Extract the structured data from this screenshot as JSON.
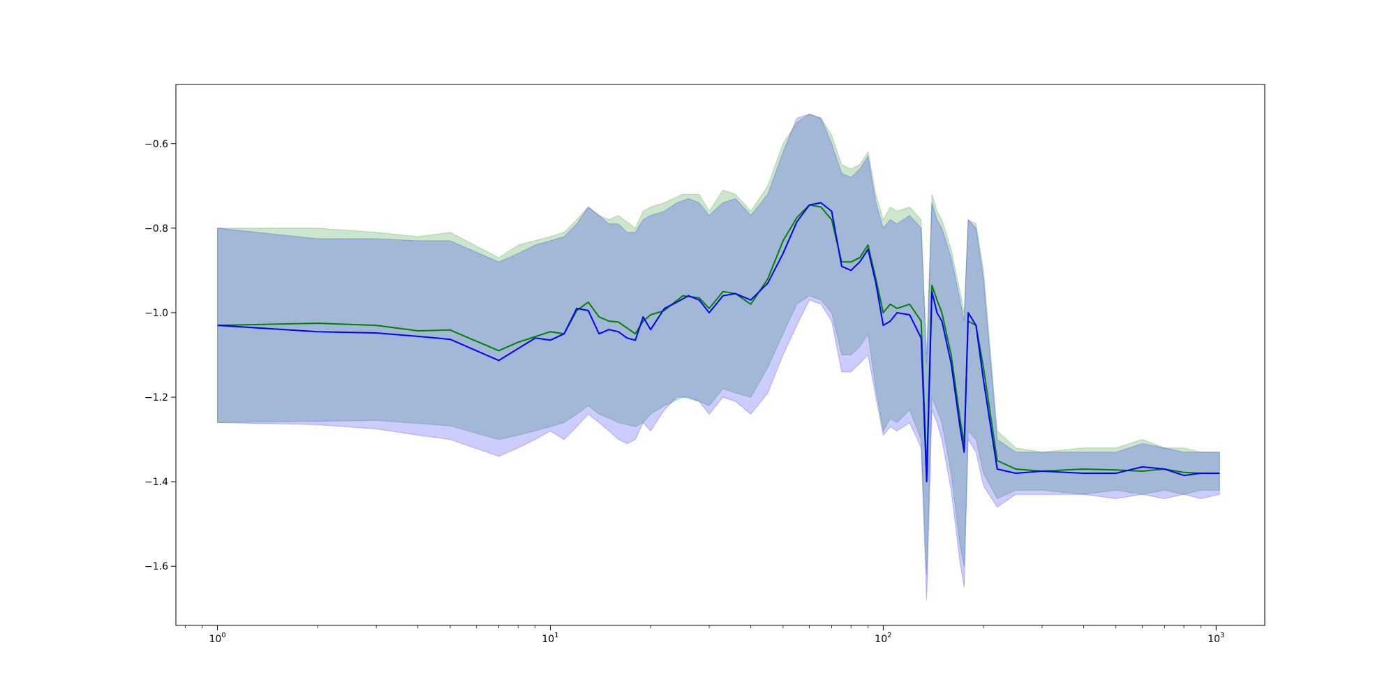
{
  "chart_data": {
    "type": "line",
    "title": "",
    "xlabel": "",
    "ylabel": "",
    "xscale": "log",
    "xlim": [
      0.75,
      1400
    ],
    "ylim": [
      -1.74,
      -0.46
    ],
    "grid": false,
    "legend": "none",
    "x_ticks": [
      {
        "base": "10",
        "exp": "0",
        "value": 1
      },
      {
        "base": "10",
        "exp": "1",
        "value": 10
      },
      {
        "base": "10",
        "exp": "2",
        "value": 100
      },
      {
        "base": "10",
        "exp": "3",
        "value": 1000
      }
    ],
    "y_ticks": [
      {
        "label": "−0.6",
        "value": -0.6
      },
      {
        "label": "−0.8",
        "value": -0.8
      },
      {
        "label": "−1.0",
        "value": -1.0
      },
      {
        "label": "−1.2",
        "value": -1.2
      },
      {
        "label": "−1.4",
        "value": -1.4
      },
      {
        "label": "−1.6",
        "value": -1.6
      }
    ],
    "series": [
      {
        "color": "#008000",
        "band_color": "#008000",
        "band_opacity": 0.2,
        "x": [
          1,
          2,
          3,
          4,
          5,
          7,
          8,
          10,
          11,
          12,
          13,
          14,
          15,
          16,
          18,
          19,
          20,
          22,
          25,
          28,
          30,
          33,
          36,
          40,
          45,
          50,
          55,
          60,
          65,
          70,
          75,
          80,
          85,
          90,
          95,
          100,
          105,
          110,
          120,
          130,
          135,
          140,
          145,
          150,
          160,
          170,
          175,
          180,
          190,
          200,
          220,
          250,
          300,
          400,
          500,
          600,
          700,
          800,
          900,
          1024
        ],
        "y": [
          -1.03,
          -1.025,
          -1.03,
          -1.043,
          -1.041,
          -1.09,
          -1.07,
          -1.045,
          -1.05,
          -0.995,
          -0.975,
          -1.01,
          -1.02,
          -1.022,
          -1.05,
          -1.02,
          -1.005,
          -0.995,
          -0.96,
          -0.965,
          -0.99,
          -0.95,
          -0.955,
          -0.98,
          -0.92,
          -0.83,
          -0.775,
          -0.745,
          -0.75,
          -0.78,
          -0.88,
          -0.88,
          -0.87,
          -0.84,
          -0.92,
          -1.0,
          -0.98,
          -0.99,
          -0.98,
          -1.02,
          -1.38,
          -0.935,
          -0.97,
          -1.0,
          -1.1,
          -1.25,
          -1.31,
          -1.02,
          -1.03,
          -1.13,
          -1.35,
          -1.37,
          -1.375,
          -1.37,
          -1.372,
          -1.375,
          -1.37,
          -1.378,
          -1.38,
          -1.38
        ],
        "lower": [
          -1.26,
          -1.257,
          -1.255,
          -1.262,
          -1.268,
          -1.3,
          -1.29,
          -1.27,
          -1.26,
          -1.24,
          -1.22,
          -1.24,
          -1.25,
          -1.26,
          -1.27,
          -1.26,
          -1.24,
          -1.22,
          -1.2,
          -1.21,
          -1.22,
          -1.18,
          -1.19,
          -1.2,
          -1.13,
          -1.05,
          -0.98,
          -0.96,
          -0.97,
          -1.0,
          -1.1,
          -1.1,
          -1.08,
          -1.05,
          -1.18,
          -1.28,
          -1.25,
          -1.26,
          -1.23,
          -1.3,
          -1.62,
          -1.2,
          -1.23,
          -1.26,
          -1.38,
          -1.55,
          -1.6,
          -1.28,
          -1.3,
          -1.38,
          -1.44,
          -1.42,
          -1.42,
          -1.43,
          -1.42,
          -1.43,
          -1.42,
          -1.43,
          -1.42,
          -1.42
        ],
        "upper": [
          -0.8,
          -0.8,
          -0.81,
          -0.82,
          -0.81,
          -0.87,
          -0.84,
          -0.82,
          -0.81,
          -0.78,
          -0.75,
          -0.77,
          -0.78,
          -0.77,
          -0.8,
          -0.76,
          -0.75,
          -0.74,
          -0.72,
          -0.72,
          -0.76,
          -0.71,
          -0.72,
          -0.76,
          -0.7,
          -0.6,
          -0.55,
          -0.53,
          -0.54,
          -0.58,
          -0.65,
          -0.66,
          -0.65,
          -0.62,
          -0.72,
          -0.78,
          -0.75,
          -0.76,
          -0.75,
          -0.78,
          -1.1,
          -0.72,
          -0.76,
          -0.78,
          -0.85,
          -0.95,
          -1.0,
          -0.78,
          -0.79,
          -0.9,
          -1.28,
          -1.32,
          -1.33,
          -1.32,
          -1.32,
          -1.3,
          -1.32,
          -1.32,
          -1.33,
          -1.33
        ]
      },
      {
        "color": "#0000ff",
        "band_color": "#0000ff",
        "band_opacity": 0.2,
        "x": [
          1,
          2,
          3,
          4,
          5,
          7,
          8,
          9,
          10,
          11,
          12,
          13,
          14,
          15,
          16,
          17,
          18,
          19,
          20,
          22,
          24,
          26,
          28,
          30,
          33,
          36,
          40,
          45,
          50,
          55,
          60,
          65,
          70,
          75,
          80,
          85,
          90,
          95,
          100,
          105,
          110,
          120,
          130,
          135,
          140,
          145,
          150,
          160,
          170,
          175,
          180,
          190,
          200,
          220,
          250,
          300,
          400,
          500,
          600,
          700,
          800,
          900,
          1024
        ],
        "y": [
          -1.03,
          -1.045,
          -1.048,
          -1.056,
          -1.063,
          -1.113,
          -1.085,
          -1.06,
          -1.065,
          -1.05,
          -0.99,
          -0.995,
          -1.05,
          -1.04,
          -1.045,
          -1.06,
          -1.065,
          -1.01,
          -1.04,
          -0.99,
          -0.975,
          -0.96,
          -0.97,
          -1.0,
          -0.96,
          -0.955,
          -0.97,
          -0.93,
          -0.86,
          -0.785,
          -0.745,
          -0.74,
          -0.76,
          -0.89,
          -0.9,
          -0.88,
          -0.85,
          -0.93,
          -1.03,
          -1.02,
          -1.0,
          -1.005,
          -1.06,
          -1.4,
          -0.95,
          -1.0,
          -1.02,
          -1.12,
          -1.27,
          -1.33,
          -1.0,
          -1.03,
          -1.16,
          -1.37,
          -1.38,
          -1.375,
          -1.38,
          -1.38,
          -1.365,
          -1.37,
          -1.385,
          -1.38,
          -1.38
        ],
        "lower": [
          -1.26,
          -1.265,
          -1.275,
          -1.29,
          -1.3,
          -1.34,
          -1.32,
          -1.3,
          -1.28,
          -1.3,
          -1.27,
          -1.24,
          -1.26,
          -1.28,
          -1.3,
          -1.31,
          -1.3,
          -1.26,
          -1.28,
          -1.23,
          -1.2,
          -1.2,
          -1.21,
          -1.24,
          -1.2,
          -1.21,
          -1.24,
          -1.19,
          -1.1,
          -1.03,
          -0.97,
          -0.98,
          -1.02,
          -1.14,
          -1.14,
          -1.12,
          -1.1,
          -1.2,
          -1.29,
          -1.27,
          -1.28,
          -1.26,
          -1.32,
          -1.68,
          -1.23,
          -1.26,
          -1.3,
          -1.42,
          -1.59,
          -1.65,
          -1.3,
          -1.33,
          -1.41,
          -1.46,
          -1.43,
          -1.43,
          -1.43,
          -1.44,
          -1.43,
          -1.44,
          -1.43,
          -1.44,
          -1.43
        ],
        "upper": [
          -0.8,
          -0.825,
          -0.825,
          -0.83,
          -0.83,
          -0.88,
          -0.86,
          -0.84,
          -0.83,
          -0.82,
          -0.79,
          -0.75,
          -0.77,
          -0.79,
          -0.79,
          -0.81,
          -0.81,
          -0.78,
          -0.77,
          -0.76,
          -0.74,
          -0.73,
          -0.74,
          -0.77,
          -0.74,
          -0.73,
          -0.77,
          -0.72,
          -0.62,
          -0.54,
          -0.53,
          -0.54,
          -0.6,
          -0.67,
          -0.68,
          -0.66,
          -0.63,
          -0.74,
          -0.8,
          -0.78,
          -0.79,
          -0.77,
          -0.8,
          -1.12,
          -0.74,
          -0.78,
          -0.8,
          -0.87,
          -0.97,
          -1.02,
          -0.78,
          -0.8,
          -0.92,
          -1.3,
          -1.33,
          -1.33,
          -1.33,
          -1.33,
          -1.31,
          -1.32,
          -1.33,
          -1.33,
          -1.33
        ]
      }
    ]
  }
}
